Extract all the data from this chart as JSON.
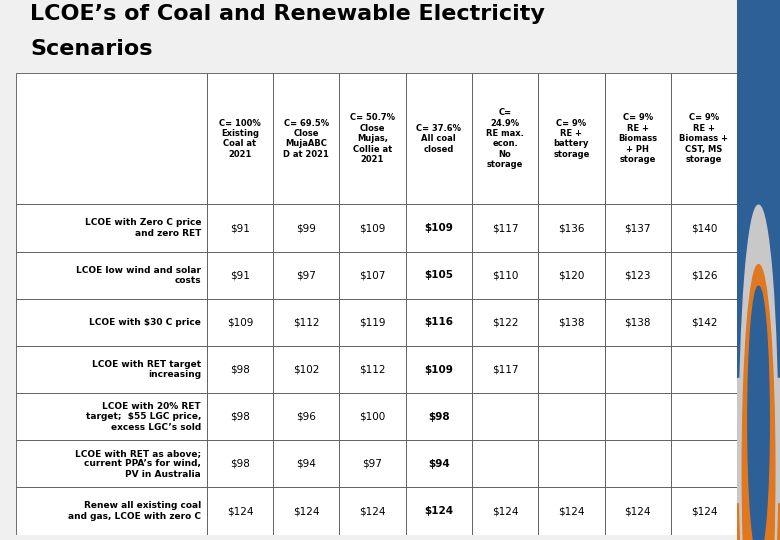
{
  "title_line1": "LCOE’s of Coal and Renewable Electricity",
  "title_line2": "Scenarios",
  "title_fontsize": 16,
  "col_headers": [
    "C= 100%\nExisting\nCoal at\n2021",
    "C= 69.5%\nClose\nMujaABC\nD at 2021",
    "C= 50.7%\nClose\nMujas,\nCollie at\n2021",
    "C= 37.6%\nAll coal\nclosed",
    "C=\n24.9%\nRE max.\necon.\nNo\nstorage",
    "C= 9%\nRE +\nbattery\nstorage",
    "C= 9%\nRE +\nBiomass\n+ PH\nstorage",
    "C= 9%\nRE +\nBiomass +\nCST, MS\nstorage"
  ],
  "row_headers": [
    "LCOE with Zero C price\nand zero RET",
    "LCOE low wind and solar\ncosts",
    "LCOE with $30 C price",
    "LCOE with RET target\nincreasing",
    "LCOE with 20% RET\ntarget;  $55 LGC price,\nexcess LGC’s sold",
    "LCOE with RET as above;\ncurrent PPA’s for wind,\nPV in Australia",
    "Renew all existing coal\nand gas, LCOE with zero C"
  ],
  "data": [
    [
      "$91",
      "$99",
      "$109",
      "$109",
      "$117",
      "$136",
      "$137",
      "$140"
    ],
    [
      "$91",
      "$97",
      "$107",
      "$105",
      "$110",
      "$120",
      "$123",
      "$126"
    ],
    [
      "$109",
      "$112",
      "$119",
      "$116",
      "$122",
      "$138",
      "$138",
      "$142"
    ],
    [
      "$98",
      "$102",
      "$112",
      "$109",
      "$117",
      "",
      "",
      ""
    ],
    [
      "$98",
      "$96",
      "$100",
      "$98",
      "",
      "",
      "",
      ""
    ],
    [
      "$98",
      "$94",
      "$97",
      "$94",
      "",
      "",
      "",
      ""
    ],
    [
      "$124",
      "$124",
      "$124",
      "$124",
      "$124",
      "$124",
      "$124",
      "$124"
    ]
  ],
  "bold_col": 3,
  "header_bg": "#ffffff",
  "cell_bg": "#ffffff",
  "grid_color": "#000000",
  "text_color": "#000000",
  "title_color": "#000000",
  "background_color": "#f0f0f0",
  "right_bar_blue": "#2d6096",
  "right_bar_orange": "#e07820",
  "right_bar_logo_bg": "#d0d0d0"
}
